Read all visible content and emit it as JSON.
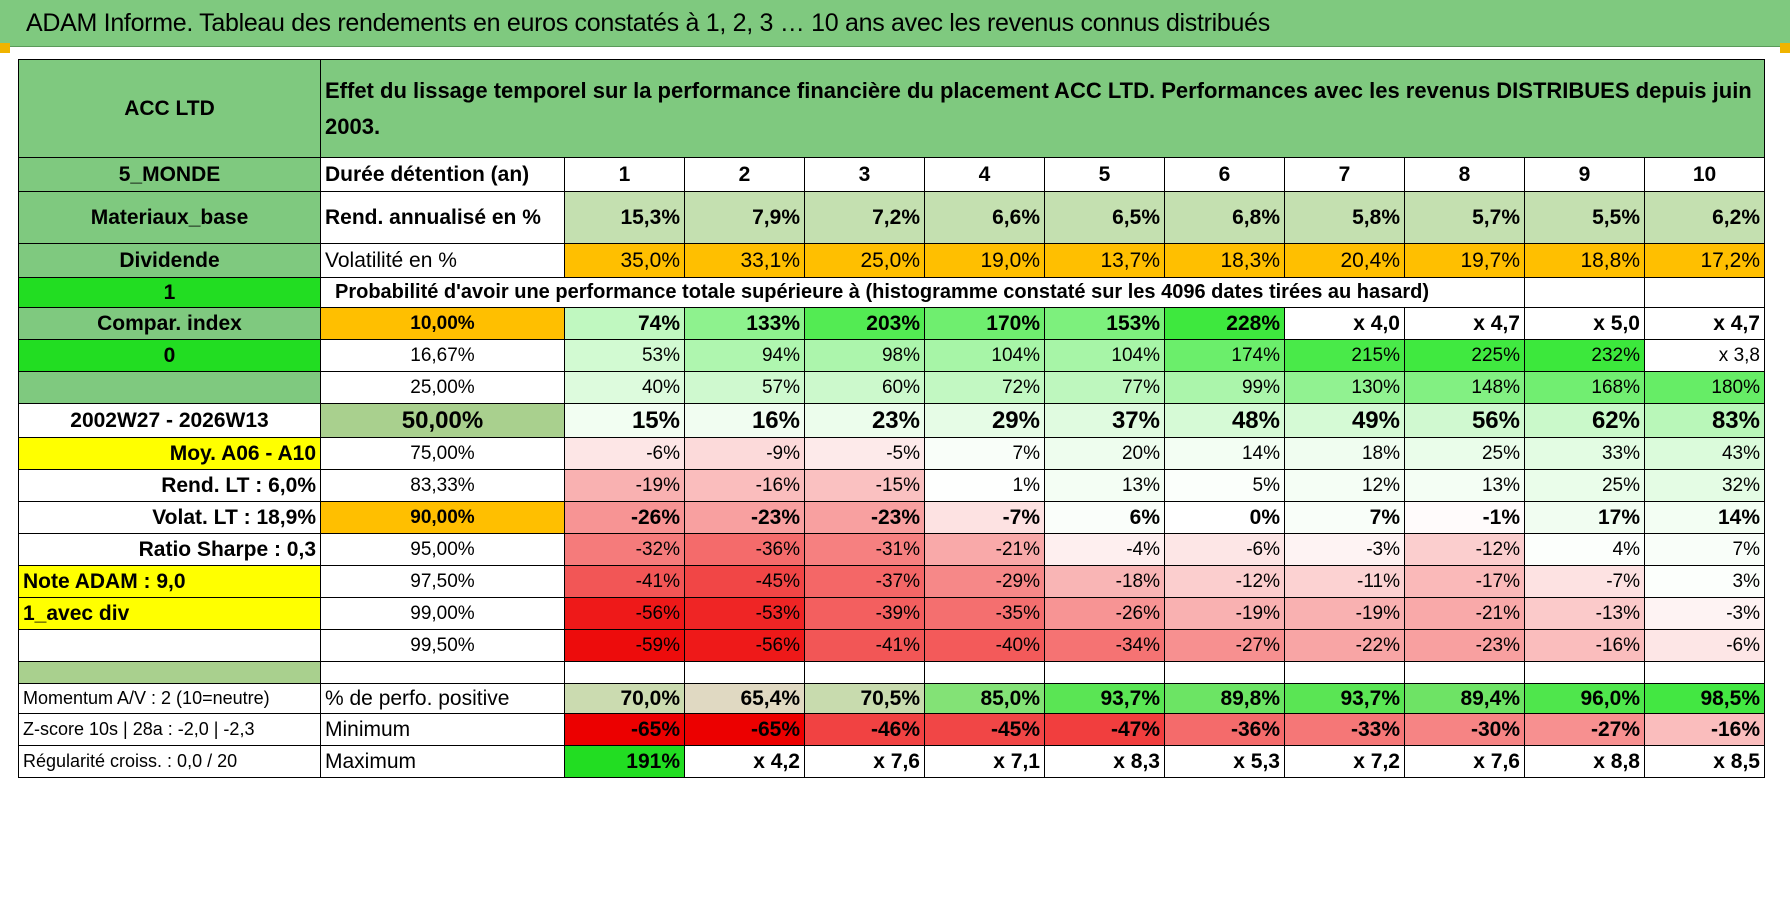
{
  "header": {
    "title": "ADAM Informe. Tableau des rendements en euros constatés à 1, 2, 3 … 10 ans avec les revenus connus distribués"
  },
  "left": {
    "name": "ACC LTD",
    "zone": "5_MONDE",
    "sector": "Materiaux_base",
    "dividend": "Dividende",
    "val1": "1",
    "compar": "Compar. index",
    "val0": "0",
    "period": "2002W27 - 2026W13",
    "moy": "Moy. A06 - A10",
    "rend_lt": "Rend. LT :    6,0%",
    "volat_lt": "Volat. LT :    18,9%",
    "sharpe": "Ratio Sharpe :     0,3",
    "note": "Note ADAM : 9,0",
    "avec_div": "1_avec div",
    "momentum": "Momentum A/V : 2 (10=neutre)",
    "zscore": "Z-score 10s | 28a : -2,0 | -2,3",
    "regularite": "Régularité croiss. : 0,0 / 20"
  },
  "desc": "Effet du lissage temporel sur la performance financière du placement ACC LTD. Performances avec les revenus DISTRIBUES depuis juin 2003.",
  "row_labels": {
    "duree": "Durée détention (an)",
    "rend": "Rend. annualisé en %",
    "vol": "Volatilité en %",
    "prob": "Probabilité d'avoir une performance totale supérieure à (histogramme constaté sur les 4096 dates tirées au hasard)",
    "pos": "% de perfo. positive",
    "min": "Minimum",
    "max": "Maximum"
  },
  "years": [
    "1",
    "2",
    "3",
    "4",
    "5",
    "6",
    "7",
    "8",
    "9",
    "10"
  ],
  "rend": [
    "15,3%",
    "7,9%",
    "7,2%",
    "6,6%",
    "6,5%",
    "6,8%",
    "5,8%",
    "5,7%",
    "5,5%",
    "6,2%"
  ],
  "vol": [
    "35,0%",
    "33,1%",
    "25,0%",
    "19,0%",
    "13,7%",
    "18,3%",
    "20,4%",
    "19,7%",
    "18,8%",
    "17,2%"
  ],
  "prob_rows": [
    {
      "p": "10,00%",
      "v": [
        "74%",
        "133%",
        "203%",
        "170%",
        "153%",
        "228%",
        "x 4,0",
        "x 4,7",
        "x 5,0",
        "x 4,7"
      ]
    },
    {
      "p": "16,67%",
      "v": [
        "53%",
        "94%",
        "98%",
        "104%",
        "104%",
        "174%",
        "215%",
        "225%",
        "232%",
        "x 3,8"
      ]
    },
    {
      "p": "25,00%",
      "v": [
        "40%",
        "57%",
        "60%",
        "72%",
        "77%",
        "99%",
        "130%",
        "148%",
        "168%",
        "180%"
      ]
    },
    {
      "p": "50,00%",
      "v": [
        "15%",
        "16%",
        "23%",
        "29%",
        "37%",
        "48%",
        "49%",
        "56%",
        "62%",
        "83%"
      ]
    },
    {
      "p": "75,00%",
      "v": [
        "-6%",
        "-9%",
        "-5%",
        "7%",
        "20%",
        "14%",
        "18%",
        "25%",
        "33%",
        "43%"
      ]
    },
    {
      "p": "83,33%",
      "v": [
        "-19%",
        "-16%",
        "-15%",
        "1%",
        "13%",
        "5%",
        "12%",
        "13%",
        "25%",
        "32%"
      ]
    },
    {
      "p": "90,00%",
      "v": [
        "-26%",
        "-23%",
        "-23%",
        "-7%",
        "6%",
        "0%",
        "7%",
        "-1%",
        "17%",
        "14%"
      ]
    },
    {
      "p": "95,00%",
      "v": [
        "-32%",
        "-36%",
        "-31%",
        "-21%",
        "-4%",
        "-6%",
        "-3%",
        "-12%",
        "4%",
        "7%"
      ]
    },
    {
      "p": "97,50%",
      "v": [
        "-41%",
        "-45%",
        "-37%",
        "-29%",
        "-18%",
        "-12%",
        "-11%",
        "-17%",
        "-7%",
        "3%"
      ]
    },
    {
      "p": "99,00%",
      "v": [
        "-56%",
        "-53%",
        "-39%",
        "-35%",
        "-26%",
        "-19%",
        "-19%",
        "-21%",
        "-13%",
        "-3%"
      ]
    },
    {
      "p": "99,50%",
      "v": [
        "-59%",
        "-56%",
        "-41%",
        "-40%",
        "-34%",
        "-27%",
        "-22%",
        "-23%",
        "-16%",
        "-6%"
      ]
    }
  ],
  "pos": [
    "70,0%",
    "65,4%",
    "70,5%",
    "85,0%",
    "93,7%",
    "89,8%",
    "93,7%",
    "89,4%",
    "96,0%",
    "98,5%"
  ],
  "min": [
    "-65%",
    "-65%",
    "-46%",
    "-45%",
    "-47%",
    "-36%",
    "-33%",
    "-30%",
    "-27%",
    "-16%"
  ],
  "max": [
    "191%",
    "x 4,2",
    "x 7,6",
    "x 7,1",
    "x 8,3",
    "x 5,3",
    "x 7,2",
    "x 7,6",
    "x 8,8",
    "x 8,5"
  ],
  "colors": {
    "header_green": "#7fc97f",
    "bright_green": "#22dd22",
    "yellow": "#ffff00",
    "orange": "#ffbf00",
    "pale_green": "#c4e0b0",
    "mid_green": "#a9d08e"
  }
}
